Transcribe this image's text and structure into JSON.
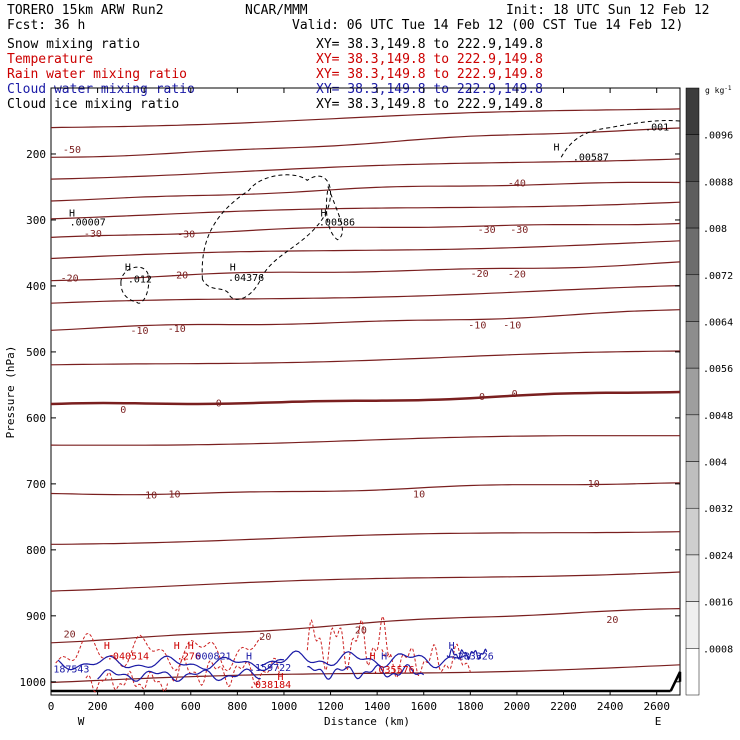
{
  "header": {
    "model": "TORERO  15km ARW   Run2",
    "org": "NCAR/MMM",
    "init": "Init: 18 UTC Sun 12 Feb 12",
    "fcst": "Fcst:   36 h",
    "valid": "Valid: 06 UTC Tue 14 Feb 12 (00 CST Tue 14 Feb 12)"
  },
  "legend": [
    {
      "label": "Snow mixing ratio",
      "xy": "XY=  38.3,149.8 to 222.9,149.8",
      "color": "#000000"
    },
    {
      "label": "Temperature",
      "xy": "XY=  38.3,149.8 to 222.9,149.8",
      "color": "#cc0000"
    },
    {
      "label": "Rain water mixing ratio",
      "xy": "XY=  38.3,149.8 to 222.9,149.8",
      "color": "#cc0000"
    },
    {
      "label": "Cloud water mixing ratio",
      "xy": "XY=  38.3,149.8 to 222.9,149.8",
      "color": "#1a1aa6"
    },
    {
      "label": "Cloud ice mixing ratio",
      "xy": "XY=  38.3,149.8 to 222.9,149.8",
      "color": "#000000"
    }
  ],
  "colorbar": {
    "unit": "g kg",
    "unit_exp": "-1",
    "ticks": [
      ".0096",
      ".0088",
      ".008",
      ".0072",
      ".0064",
      ".0056",
      ".0048",
      ".004",
      ".0032",
      ".0024",
      ".0016",
      ".0008"
    ]
  },
  "chart_data": {
    "type": "contour-cross-section",
    "xlabel": "Distance (km)",
    "ylabel": "Pressure (hPa)",
    "xlim": [
      0,
      2700
    ],
    "ylim": [
      1020,
      100
    ],
    "x_ticks": [
      0,
      200,
      400,
      600,
      800,
      1000,
      1200,
      1400,
      1600,
      1800,
      2000,
      2200,
      2400,
      2600
    ],
    "y_ticks": [
      200,
      300,
      400,
      500,
      600,
      700,
      800,
      900,
      1000
    ],
    "x_end_labels": {
      "left": "W",
      "right": "E"
    },
    "temperature_isotherms": [
      {
        "level": -50,
        "pressure_at_ends": [
          205,
          162
        ]
      },
      {
        "level": -40,
        "pressure_at_ends": [
          268,
          241
        ]
      },
      {
        "level": -30,
        "pressure_at_ends": [
          325,
          302
        ]
      },
      {
        "level": -20,
        "pressure_at_ends": [
          392,
          364
        ]
      },
      {
        "level": -10,
        "pressure_at_ends": [
          468,
          438
        ]
      },
      {
        "level": 0,
        "pressure_at_ends": [
          582,
          562
        ]
      },
      {
        "level": 10,
        "pressure_at_ends": [
          716,
          700
        ]
      },
      {
        "level": 20,
        "pressure_at_ends": [
          938,
          888
        ]
      }
    ],
    "temperature_labels": [
      {
        "x": 90,
        "p": 194,
        "text": "-50"
      },
      {
        "x": 2000,
        "p": 245,
        "text": "-40"
      },
      {
        "x": 180,
        "p": 321,
        "text": "-30"
      },
      {
        "x": 580,
        "p": 322,
        "text": "-30"
      },
      {
        "x": 1870,
        "p": 315,
        "text": "-30"
      },
      {
        "x": 2010,
        "p": 315,
        "text": "-30"
      },
      {
        "x": 80,
        "p": 389,
        "text": "-20"
      },
      {
        "x": 550,
        "p": 384,
        "text": "-20"
      },
      {
        "x": 1840,
        "p": 382,
        "text": "-20"
      },
      {
        "x": 2000,
        "p": 383,
        "text": "-20"
      },
      {
        "x": 380,
        "p": 468,
        "text": "-10"
      },
      {
        "x": 540,
        "p": 465,
        "text": "-10"
      },
      {
        "x": 1830,
        "p": 460,
        "text": "-10"
      },
      {
        "x": 1980,
        "p": 460,
        "text": "-10"
      },
      {
        "x": 310,
        "p": 588,
        "text": "0"
      },
      {
        "x": 720,
        "p": 578,
        "text": "0"
      },
      {
        "x": 1850,
        "p": 568,
        "text": "0"
      },
      {
        "x": 1990,
        "p": 564,
        "text": "0"
      },
      {
        "x": 430,
        "p": 718,
        "text": "10"
      },
      {
        "x": 530,
        "p": 716,
        "text": "10"
      },
      {
        "x": 1580,
        "p": 716,
        "text": "10"
      },
      {
        "x": 2330,
        "p": 700,
        "text": "10"
      },
      {
        "x": 80,
        "p": 928,
        "text": "20"
      },
      {
        "x": 920,
        "p": 932,
        "text": "20"
      },
      {
        "x": 1330,
        "p": 922,
        "text": "20"
      },
      {
        "x": 2410,
        "p": 906,
        "text": "20"
      }
    ],
    "field_labels": [
      {
        "x": 2550,
        "p": 160,
        "text": ".001",
        "color": "#000000"
      },
      {
        "x": 2240,
        "p": 205,
        "text": ".00587",
        "color": "#000000"
      },
      {
        "x": 80,
        "p": 304,
        "text": ".00007",
        "color": "#000000"
      },
      {
        "x": 1150,
        "p": 304,
        "text": ".00586",
        "color": "#000000"
      },
      {
        "x": 330,
        "p": 390,
        "text": ".012",
        "color": "#000000"
      },
      {
        "x": 760,
        "p": 388,
        "text": ".04376",
        "color": "#000000"
      },
      {
        "x": 240,
        "p": 962,
        "text": ".040514",
        "color": "#cc0000"
      },
      {
        "x": 540,
        "p": 962,
        "text": ".276",
        "color": "#cc0000"
      },
      {
        "x": 620,
        "p": 962,
        "text": "000821",
        "color": "#1a1aa6"
      },
      {
        "x": 850,
        "p": 979,
        "text": ".159722",
        "color": "#1a1aa6"
      },
      {
        "x": 10,
        "p": 981,
        "text": "187543",
        "color": "#1a1aa6"
      },
      {
        "x": 850,
        "p": 1005,
        "text": ".038184",
        "color": "#cc0000"
      },
      {
        "x": 1380,
        "p": 982,
        "text": ".035576",
        "color": "#cc0000"
      },
      {
        "x": 1720,
        "p": 962,
        "text": ".283326",
        "color": "#1a1aa6"
      }
    ],
    "maxima_markers": [
      {
        "x": 2170,
        "p": 190,
        "color": "#000000"
      },
      {
        "x": 90,
        "p": 290,
        "color": "#000000"
      },
      {
        "x": 1170,
        "p": 290,
        "color": "#000000"
      },
      {
        "x": 330,
        "p": 372,
        "color": "#000000"
      },
      {
        "x": 780,
        "p": 372,
        "color": "#000000"
      },
      {
        "x": 240,
        "p": 946,
        "color": "#cc0000"
      },
      {
        "x": 540,
        "p": 946,
        "color": "#cc0000"
      },
      {
        "x": 600,
        "p": 946,
        "color": "#cc0000"
      },
      {
        "x": 850,
        "p": 962,
        "color": "#1a1aa6"
      },
      {
        "x": 1380,
        "p": 962,
        "color": "#cc0000"
      },
      {
        "x": 1430,
        "p": 962,
        "color": "#1a1aa6"
      },
      {
        "x": 1720,
        "p": 946,
        "color": "#1a1aa6"
      },
      {
        "x": 985,
        "p": 993,
        "color": "#cc0000"
      }
    ],
    "colorbar_shading": "gray scale, darkest at top"
  }
}
